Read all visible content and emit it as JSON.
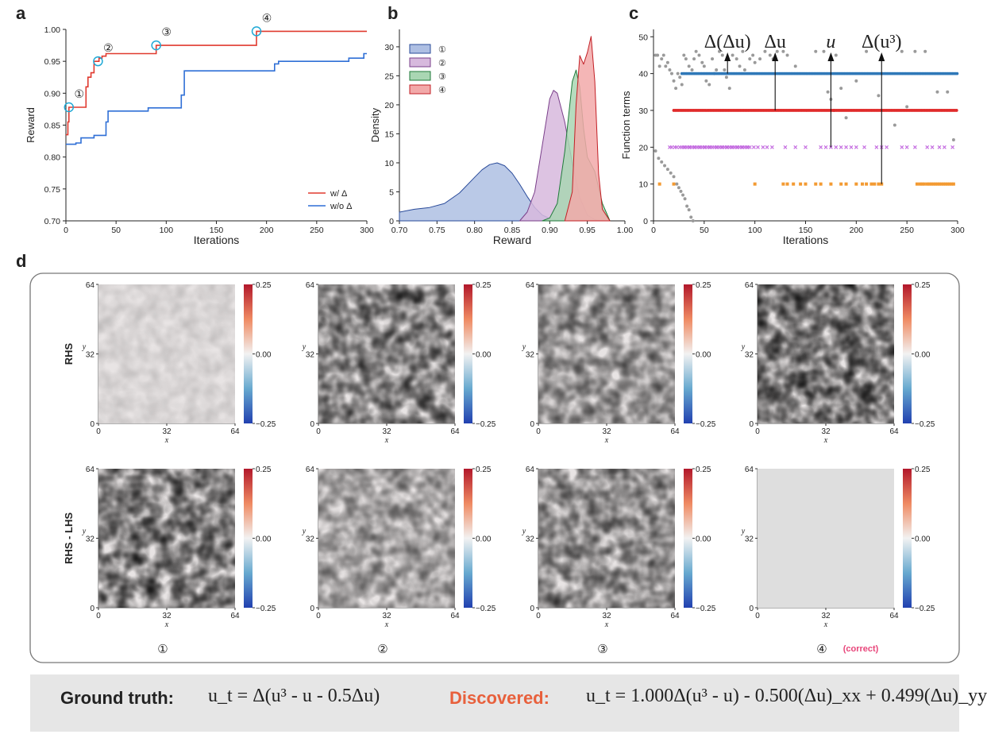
{
  "panels": {
    "a": "a",
    "b": "b",
    "c": "c",
    "d": "d"
  },
  "chart_data": [
    {
      "id": "a",
      "type": "line",
      "xlabel": "Iterations",
      "ylabel": "Reward",
      "xlim": [
        0,
        300
      ],
      "ylim": [
        0.7,
        1.0
      ],
      "xticks": [
        "0",
        "50",
        "100",
        "150",
        "200",
        "250",
        "300"
      ],
      "yticks": [
        "0.70",
        "0.75",
        "0.80",
        "0.85",
        "0.90",
        "0.95",
        "1.00"
      ],
      "legend_position": "bottom-right",
      "series": [
        {
          "name": "w/ Δ",
          "color": "#e03a2f",
          "points": [
            [
              0,
              0.835
            ],
            [
              2,
              0.835
            ],
            [
              2,
              0.855
            ],
            [
              3,
              0.855
            ],
            [
              3,
              0.878
            ],
            [
              20,
              0.878
            ],
            [
              20,
              0.91
            ],
            [
              22,
              0.91
            ],
            [
              22,
              0.925
            ],
            [
              25,
              0.925
            ],
            [
              25,
              0.932
            ],
            [
              28,
              0.932
            ],
            [
              28,
              0.95
            ],
            [
              33,
              0.95
            ],
            [
              33,
              0.955
            ],
            [
              36,
              0.955
            ],
            [
              36,
              0.958
            ],
            [
              40,
              0.958
            ],
            [
              40,
              0.962
            ],
            [
              90,
              0.962
            ],
            [
              90,
              0.975
            ],
            [
              190,
              0.975
            ],
            [
              190,
              0.997
            ],
            [
              300,
              0.997
            ]
          ]
        },
        {
          "name": "w/o Δ",
          "color": "#2f6fd6",
          "points": [
            [
              0,
              0.82
            ],
            [
              10,
              0.82
            ],
            [
              10,
              0.822
            ],
            [
              15,
              0.822
            ],
            [
              15,
              0.83
            ],
            [
              28,
              0.83
            ],
            [
              28,
              0.834
            ],
            [
              40,
              0.834
            ],
            [
              40,
              0.855
            ],
            [
              42,
              0.855
            ],
            [
              42,
              0.872
            ],
            [
              82,
              0.872
            ],
            [
              82,
              0.877
            ],
            [
              115,
              0.877
            ],
            [
              115,
              0.897
            ],
            [
              118,
              0.897
            ],
            [
              118,
              0.935
            ],
            [
              208,
              0.935
            ],
            [
              208,
              0.946
            ],
            [
              212,
              0.946
            ],
            [
              212,
              0.95
            ],
            [
              282,
              0.95
            ],
            [
              282,
              0.955
            ],
            [
              297,
              0.955
            ],
            [
              297,
              0.962
            ],
            [
              300,
              0.962
            ]
          ]
        }
      ],
      "markers": [
        {
          "label": "①",
          "x": 3,
          "y": 0.878
        },
        {
          "label": "②",
          "x": 32,
          "y": 0.95
        },
        {
          "label": "③",
          "x": 90,
          "y": 0.975
        },
        {
          "label": "④",
          "x": 190,
          "y": 0.997
        }
      ]
    },
    {
      "id": "b",
      "type": "area",
      "xlabel": "Reward",
      "ylabel": "Density",
      "xlim": [
        0.7,
        1.0
      ],
      "ylim": [
        0,
        33
      ],
      "xticks": [
        "0.70",
        "0.75",
        "0.80",
        "0.85",
        "0.90",
        "0.95",
        "1.00"
      ],
      "yticks": [
        "0",
        "5",
        "10",
        "15",
        "20",
        "25",
        "30"
      ],
      "legend_position": "top-left",
      "series": [
        {
          "name": "①",
          "fill": "#aebfe3",
          "stroke": "#2a4b9a",
          "x": [
            0.7,
            0.72,
            0.74,
            0.76,
            0.78,
            0.8,
            0.81,
            0.82,
            0.83,
            0.84,
            0.85,
            0.86,
            0.87,
            0.88,
            0.89,
            0.9,
            0.91,
            0.92
          ],
          "y": [
            1.5,
            2.0,
            2.3,
            3.0,
            4.8,
            7.5,
            8.8,
            9.7,
            10.0,
            9.5,
            8.2,
            6.3,
            4.2,
            2.3,
            1.0,
            0.4,
            0.1,
            0
          ]
        },
        {
          "name": "②",
          "fill": "#d7b9dd",
          "stroke": "#7a3f8a",
          "x": [
            0.86,
            0.87,
            0.88,
            0.89,
            0.9,
            0.905,
            0.91,
            0.92,
            0.93,
            0.94,
            0.95,
            0.96,
            0.97
          ],
          "y": [
            0,
            1.5,
            5.0,
            13.0,
            21.0,
            22.5,
            22.0,
            17.0,
            10.0,
            4.0,
            1.0,
            0.2,
            0
          ]
        },
        {
          "name": "③",
          "fill": "#a9d6b3",
          "stroke": "#1f7a3a",
          "x": [
            0.89,
            0.9,
            0.91,
            0.92,
            0.93,
            0.935,
            0.94,
            0.945,
            0.95,
            0.96,
            0.97,
            0.98
          ],
          "y": [
            0,
            0.5,
            3.0,
            12.0,
            24.0,
            26.0,
            23.0,
            16.0,
            11.0,
            8.5,
            3.0,
            0
          ]
        },
        {
          "name": "④",
          "fill": "#f2a9a9",
          "stroke": "#c21f25",
          "x": [
            0.92,
            0.93,
            0.935,
            0.94,
            0.945,
            0.95,
            0.955,
            0.96,
            0.965,
            0.97,
            0.98
          ],
          "y": [
            0,
            5.0,
            20.0,
            28.5,
            27.0,
            29.0,
            31.8,
            24.0,
            8.0,
            2.0,
            0
          ]
        }
      ]
    },
    {
      "id": "c",
      "type": "scatter",
      "xlabel": "Iterations",
      "ylabel": "Function terms",
      "xlim": [
        0,
        300
      ],
      "ylim": [
        0,
        52
      ],
      "xticks": [
        "0",
        "50",
        "100",
        "150",
        "200",
        "250",
        "300"
      ],
      "yticks": [
        "0",
        "10",
        "20",
        "30",
        "40",
        "50"
      ],
      "bands": [
        {
          "term": "Δ(Δu)",
          "y": 40,
          "color": "#2f78b8",
          "start": 28,
          "end": 300
        },
        {
          "term": "Δu",
          "y": 30,
          "color": "#e02b2b",
          "start": 20,
          "end": 300
        },
        {
          "term": "u",
          "y": 20,
          "color": "#c46ce0",
          "points": [
            16,
            18,
            21,
            23,
            26,
            28,
            30,
            31,
            33,
            35,
            36,
            38,
            40,
            41,
            43,
            45,
            46,
            48,
            50,
            51,
            53,
            55,
            56,
            58,
            60,
            62,
            63,
            65,
            67,
            68,
            70,
            72,
            73,
            75,
            77,
            78,
            80,
            82,
            83,
            85,
            87,
            88,
            90,
            92,
            93,
            95,
            99,
            103,
            108,
            112,
            117,
            130,
            140,
            150,
            165,
            170,
            175,
            180,
            185,
            190,
            195,
            200,
            208,
            220,
            225,
            230,
            245,
            250,
            258,
            270,
            275,
            282,
            287,
            295
          ]
        },
        {
          "term": "Δ(u³)",
          "y": 10,
          "color": "#f39a32",
          "points": [
            6,
            20,
            100,
            128,
            132,
            138,
            145,
            150,
            160,
            165,
            175,
            185,
            190,
            200,
            206,
            210,
            215,
            218,
            222,
            225,
            260,
            263,
            265,
            267,
            270,
            272,
            274,
            276,
            278,
            280,
            282,
            284,
            286,
            288,
            290,
            292,
            294,
            296
          ]
        }
      ],
      "gray_points": [
        [
          2,
          45
        ],
        [
          4,
          45
        ],
        [
          6,
          42
        ],
        [
          8,
          44
        ],
        [
          10,
          45
        ],
        [
          12,
          42
        ],
        [
          14,
          43
        ],
        [
          16,
          41
        ],
        [
          18,
          40
        ],
        [
          20,
          38
        ],
        [
          22,
          36
        ],
        [
          24,
          40
        ],
        [
          26,
          39
        ],
        [
          28,
          37
        ],
        [
          30,
          45
        ],
        [
          32,
          44
        ],
        [
          35,
          42
        ],
        [
          38,
          41
        ],
        [
          40,
          44
        ],
        [
          42,
          46
        ],
        [
          45,
          45
        ],
        [
          48,
          43
        ],
        [
          50,
          42
        ],
        [
          52,
          38
        ],
        [
          55,
          37
        ],
        [
          58,
          44
        ],
        [
          60,
          40
        ],
        [
          62,
          41
        ],
        [
          65,
          46
        ],
        [
          68,
          45
        ],
        [
          70,
          41
        ],
        [
          72,
          39
        ],
        [
          75,
          36
        ],
        [
          78,
          45
        ],
        [
          82,
          44
        ],
        [
          85,
          42
        ],
        [
          88,
          46
        ],
        [
          90,
          41
        ],
        [
          95,
          44
        ],
        [
          98,
          45
        ],
        [
          100,
          43
        ],
        [
          105,
          44
        ],
        [
          110,
          46
        ],
        [
          115,
          45
        ],
        [
          118,
          44
        ],
        [
          122,
          46
        ],
        [
          128,
          46
        ],
        [
          132,
          45
        ],
        [
          140,
          42
        ],
        [
          160,
          46
        ],
        [
          168,
          46
        ],
        [
          172,
          35
        ],
        [
          175,
          33
        ],
        [
          178,
          30
        ],
        [
          180,
          45
        ],
        [
          185,
          36
        ],
        [
          190,
          28
        ],
        [
          200,
          38
        ],
        [
          210,
          46
        ],
        [
          222,
          34
        ],
        [
          238,
          26
        ],
        [
          245,
          46
        ],
        [
          250,
          31
        ],
        [
          258,
          46
        ],
        [
          268,
          46
        ],
        [
          280,
          35
        ],
        [
          290,
          35
        ],
        [
          296,
          22
        ]
      ],
      "decay_points": [
        [
          2,
          19
        ],
        [
          5,
          17
        ],
        [
          8,
          16
        ],
        [
          11,
          15
        ],
        [
          14,
          14
        ],
        [
          17,
          13
        ],
        [
          20,
          12
        ],
        [
          23,
          10
        ],
        [
          25,
          9
        ],
        [
          27,
          8
        ],
        [
          29,
          7
        ],
        [
          31,
          6
        ],
        [
          33,
          4
        ],
        [
          35,
          3
        ],
        [
          37,
          1
        ],
        [
          39,
          0
        ]
      ],
      "annotations": [
        {
          "text": "Δ(Δu)",
          "x": 73
        },
        {
          "text": "Δu",
          "x": 120
        },
        {
          "text": "u",
          "x": 175
        },
        {
          "text": "Δ(u³)",
          "x": 225
        }
      ]
    },
    {
      "id": "d",
      "type": "heatmap",
      "xlabel": "x",
      "ylabel": "y",
      "ticks": [
        "0",
        "32",
        "64"
      ],
      "colorbar_ticks": [
        "0.25",
        "0.00",
        "−0.25"
      ],
      "row_labels": [
        "RHS",
        "RHS - LHS"
      ],
      "column_labels": [
        "①",
        "②",
        "③",
        "④"
      ],
      "column_note": {
        "column": 3,
        "text": "(correct)",
        "color": "#e8457a"
      },
      "intensity": [
        [
          0.12,
          0.8,
          0.65,
          0.95
        ],
        [
          0.85,
          0.55,
          0.7,
          0.0
        ]
      ]
    }
  ],
  "formula": {
    "gt_label": "Ground truth:",
    "gt_equation": "u_t = Δ(u³ - u - 0.5Δu)",
    "disc_label": "Discovered:",
    "disc_equation": "u_t = 1.000Δ(u³ - u) - 0.500(Δu)_xx + 0.499(Δu)_yy"
  }
}
